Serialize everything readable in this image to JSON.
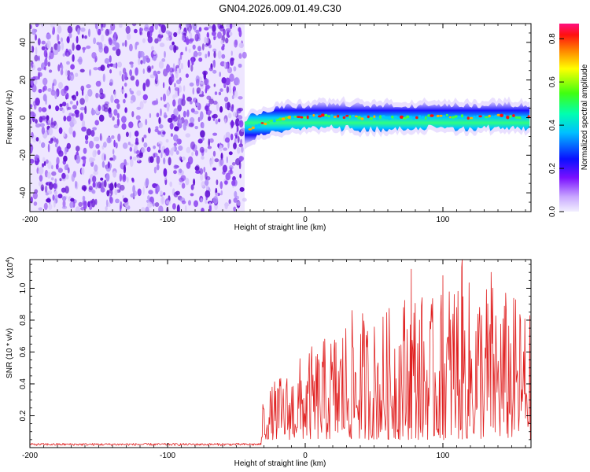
{
  "title": "GN04.2026.009.01.49.C30",
  "chart_data": [
    {
      "id": "spectrogram",
      "type": "heatmap",
      "title": "GN04.2026.009.01.49.C30",
      "xlabel": "Height of straight line (km)",
      "ylabel": "Frequency (Hz)",
      "xlim": [
        -200,
        164
      ],
      "ylim": [
        -50,
        50
      ],
      "xticks": [
        -200,
        -100,
        0,
        100
      ],
      "yticks": [
        -40,
        -20,
        0,
        20,
        40
      ],
      "noise_region_x": [
        -200,
        -44
      ],
      "signal_track": {
        "x": [
          -44,
          -40,
          -35,
          -30,
          -20,
          -10,
          0,
          10,
          20,
          40,
          60,
          80,
          100,
          120,
          140,
          164
        ],
        "freq_hz": [
          -8,
          -6,
          -4,
          -3,
          -1,
          0,
          0,
          1,
          1,
          0,
          0,
          0,
          1,
          0,
          1,
          0
        ],
        "bandwidth_hz": 6
      },
      "colorbar": {
        "label": "Normalized spectral amplitude",
        "range": [
          0.0,
          0.87
        ],
        "ticks": [
          0.0,
          0.2,
          0.4,
          0.6,
          0.8
        ],
        "tick_labels": [
          "0.0",
          "0.2",
          "0.4",
          "0.6",
          "0.8"
        ]
      },
      "colors": {
        "noise": "#7020e0",
        "track_low": "#0010ff",
        "track_mid": "#00c8ff",
        "track_high": "#ff1010"
      }
    },
    {
      "id": "snr",
      "type": "line",
      "xlabel": "Height of straight line (km)",
      "ylabel": "SNR (10 * v/v)",
      "y_multiplier": "(x10",
      "y_exponent": "4",
      "y_multiplier_close": ")",
      "xlim": [
        -200,
        164
      ],
      "ylim": [
        0,
        1.18
      ],
      "xticks": [
        -200,
        -100,
        0,
        100
      ],
      "yticks": [
        0.2,
        0.4,
        0.6,
        0.8,
        1.0
      ],
      "ytick_labels": [
        "0.2",
        "0.4",
        "0.6",
        "0.8",
        "1.0"
      ],
      "series": [
        {
          "name": "SNR",
          "color": "#e02020",
          "baseline_until_x": -32,
          "baseline_value": 0.02,
          "envelope_x": [
            -32,
            -20,
            -10,
            0,
            10,
            20,
            30,
            40,
            50,
            60,
            70,
            80,
            90,
            100,
            110,
            120,
            130,
            140,
            150,
            164
          ],
          "envelope_y": [
            0.3,
            0.45,
            0.5,
            0.62,
            0.66,
            0.75,
            0.85,
            0.88,
            0.82,
            0.88,
            0.98,
            1.05,
            0.92,
            1.0,
            1.18,
            1.05,
            1.1,
            1.02,
            0.98,
            0.85
          ],
          "peaks": [
            {
              "x": 77,
              "y": 1.12
            },
            {
              "x": 100,
              "y": 1.08
            },
            {
              "x": 114,
              "y": 1.18
            },
            {
              "x": 135,
              "y": 1.1
            }
          ]
        }
      ]
    }
  ]
}
